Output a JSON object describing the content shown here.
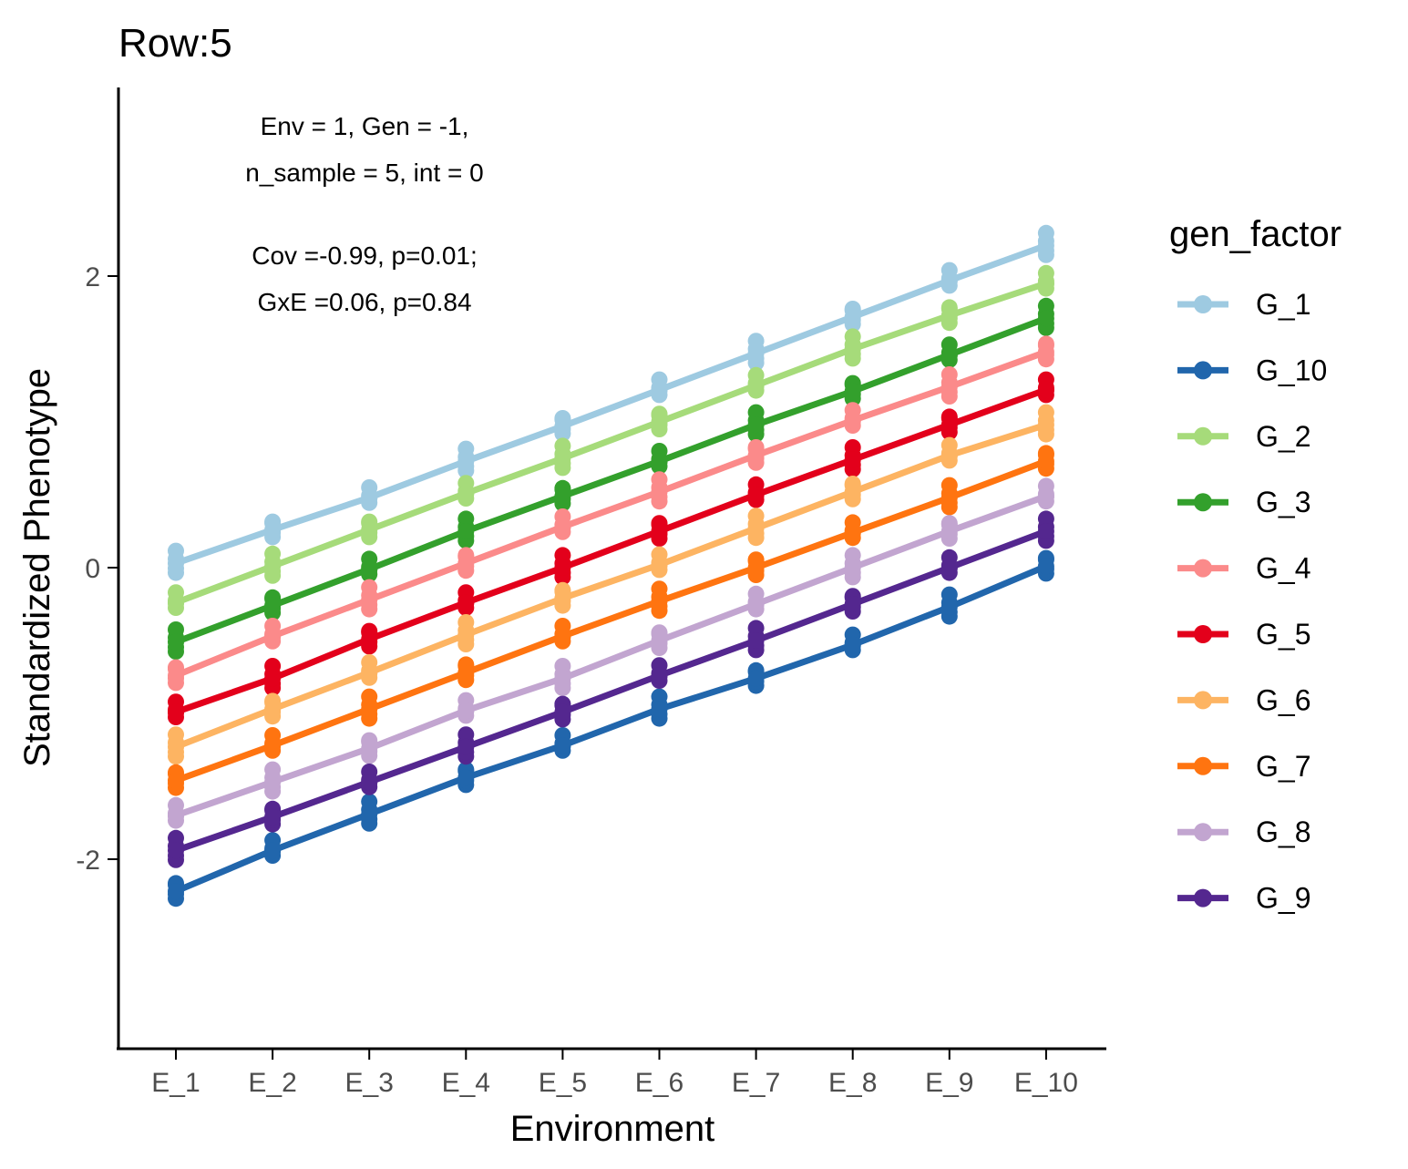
{
  "chart_data": {
    "type": "line",
    "title": "Row:5",
    "xlabel": "Environment",
    "ylabel": "Standardized Phenotype",
    "categories": [
      "E_1",
      "E_2",
      "E_3",
      "E_4",
      "E_5",
      "E_6",
      "E_7",
      "E_8",
      "E_9",
      "E_10"
    ],
    "ylim": [
      -3.3,
      3.3
    ],
    "yticks": [
      -2,
      0,
      2
    ],
    "ytick_labels": [
      "-2",
      "0",
      "2"
    ],
    "annotation_lines": [
      "Env = 1, Gen = -1,",
      "n_sample = 5, int = 0",
      "",
      "Cov =-0.99, p=0.01;",
      " GxE =0.06, p=0.84"
    ],
    "legend": {
      "title": "gen_factor",
      "placement": "right"
    },
    "grid": false,
    "series": [
      {
        "name": "G_1",
        "color": "#9ECAE1",
        "values": [
          0.03,
          0.26,
          0.48,
          0.73,
          0.97,
          1.22,
          1.47,
          1.72,
          1.97,
          2.21
        ]
      },
      {
        "name": "G_10",
        "color": "#2166AC",
        "values": [
          -2.22,
          -1.94,
          -1.69,
          -1.44,
          -1.22,
          -0.97,
          -0.76,
          -0.53,
          -0.27,
          0.01
        ]
      },
      {
        "name": "G_2",
        "color": "#A6DB7A",
        "values": [
          -0.24,
          0.01,
          0.26,
          0.51,
          0.75,
          1.0,
          1.25,
          1.5,
          1.73,
          1.95
        ]
      },
      {
        "name": "G_3",
        "color": "#33A02C",
        "values": [
          -0.51,
          -0.26,
          -0.01,
          0.25,
          0.49,
          0.73,
          0.98,
          1.21,
          1.46,
          1.71
        ]
      },
      {
        "name": "G_4",
        "color": "#FB8A8A",
        "values": [
          -0.74,
          -0.47,
          -0.22,
          0.03,
          0.28,
          0.52,
          0.77,
          1.01,
          1.24,
          1.48
        ]
      },
      {
        "name": "G_5",
        "color": "#E3001B",
        "values": [
          -0.99,
          -0.76,
          -0.49,
          -0.24,
          0.0,
          0.25,
          0.5,
          0.74,
          0.98,
          1.22
        ]
      },
      {
        "name": "G_6",
        "color": "#FDB462",
        "values": [
          -1.23,
          -0.97,
          -0.72,
          -0.46,
          -0.21,
          0.02,
          0.27,
          0.52,
          0.77,
          0.98
        ]
      },
      {
        "name": "G_7",
        "color": "#FF7410",
        "values": [
          -1.46,
          -1.22,
          -0.97,
          -0.72,
          -0.47,
          -0.23,
          0.0,
          0.24,
          0.48,
          0.73
        ]
      },
      {
        "name": "G_8",
        "color": "#C2A5D0",
        "values": [
          -1.7,
          -1.47,
          -1.24,
          -0.98,
          -0.76,
          -0.5,
          -0.25,
          0.0,
          0.25,
          0.49
        ]
      },
      {
        "name": "G_9",
        "color": "#54278F",
        "values": [
          -1.94,
          -1.71,
          -1.47,
          -1.23,
          -0.99,
          -0.74,
          -0.5,
          -0.25,
          0.0,
          0.25
        ]
      }
    ]
  }
}
